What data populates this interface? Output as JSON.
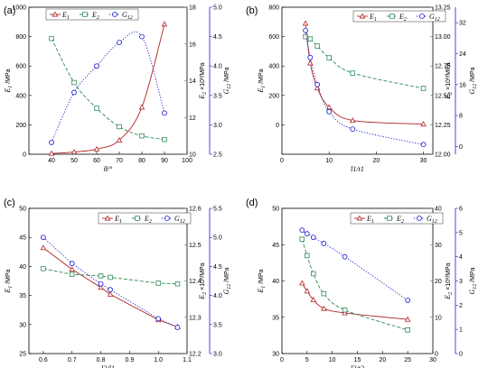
{
  "colors": {
    "E1": "#b22222",
    "E2": "#2e8b57",
    "G12": "#1a1ad0",
    "black": "#000000"
  },
  "chart_data": [
    {
      "type": "line",
      "panel_label": "(a)",
      "xlabel": "θ/°",
      "ylabel_left": "E1 /MPa",
      "ylabel_right1": "E2 ×10³/MPa",
      "ylabel_right2": "G12 /MPa",
      "xlim": [
        30,
        100
      ],
      "x_ticks": [
        40,
        50,
        60,
        70,
        80,
        90,
        100
      ],
      "ylim_left": [
        0,
        1000
      ],
      "y_left_ticks": [
        0,
        200,
        400,
        600,
        800,
        1000
      ],
      "ylim_right1": [
        10,
        18
      ],
      "y_right1_ticks": [
        10,
        12,
        14,
        16,
        18
      ],
      "ylim_right2": [
        2.5,
        5.0
      ],
      "y_right2_ticks": [
        2.5,
        3.0,
        3.5,
        4.0,
        4.5,
        5.0
      ],
      "legend": [
        "E1",
        "E2",
        "G12"
      ],
      "legend_position": "top-left",
      "series": [
        {
          "name": "E1",
          "axis": "left",
          "marker": "triangle",
          "style": "solid",
          "smooth": true,
          "x": [
            40,
            50,
            60,
            70,
            80,
            90
          ],
          "y": [
            5,
            15,
            35,
            95,
            320,
            885
          ]
        },
        {
          "name": "E2",
          "axis": "right1",
          "marker": "square",
          "style": "dashed",
          "smooth": true,
          "x": [
            40,
            50,
            60,
            70,
            80,
            90
          ],
          "y": [
            16.3,
            13.9,
            12.5,
            11.5,
            11.0,
            10.8
          ]
        },
        {
          "name": "G12",
          "axis": "right2",
          "marker": "circle",
          "style": "dotted",
          "smooth": true,
          "x": [
            40,
            50,
            60,
            70,
            80,
            90
          ],
          "y": [
            2.7,
            3.55,
            4.0,
            4.4,
            4.5,
            3.2
          ]
        }
      ]
    },
    {
      "type": "line",
      "panel_label": "(b)",
      "xlabel": "l1/t1",
      "ylabel_left": "E1 /MPa",
      "ylabel_right1": "E2 ×10³/MPa",
      "ylabel_right2": "G12 /MPa",
      "xlim": [
        0,
        32
      ],
      "x_ticks": [
        0,
        10,
        20,
        30
      ],
      "ylim_left": [
        -200,
        800
      ],
      "y_left_ticks": [
        0,
        200,
        400,
        600,
        800
      ],
      "ylim_right1": [
        12.0,
        13.25
      ],
      "y_right1_ticks": [
        12.0,
        12.25,
        12.5,
        12.75,
        13.0,
        13.25
      ],
      "ylim_right2": [
        -2,
        36
      ],
      "y_right2_ticks": [
        0,
        8,
        16,
        24,
        32
      ],
      "legend": [
        "E1",
        "E2",
        "G12"
      ],
      "legend_position": "top-right",
      "series": [
        {
          "name": "E1",
          "axis": "left",
          "marker": "triangle",
          "style": "solid",
          "smooth": true,
          "x": [
            5,
            6,
            7.5,
            10,
            15,
            30
          ],
          "y": [
            690,
            420,
            250,
            120,
            30,
            5
          ]
        },
        {
          "name": "E2",
          "axis": "right1",
          "marker": "square",
          "style": "dashed",
          "smooth": true,
          "x": [
            5,
            6,
            7.5,
            10,
            15,
            30
          ],
          "y": [
            13.0,
            12.98,
            12.92,
            12.82,
            12.69,
            12.56
          ]
        },
        {
          "name": "G12",
          "axis": "right2",
          "marker": "circle",
          "style": "dotted",
          "smooth": true,
          "x": [
            5,
            6,
            7.5,
            10,
            15,
            30
          ],
          "y": [
            30,
            23,
            16,
            9,
            4.5,
            0.5
          ]
        }
      ]
    },
    {
      "type": "line",
      "panel_label": "(c)",
      "xlabel": "l2/l1",
      "ylabel_left": "E1 /MPa",
      "ylabel_right1": "E2 ×10³/MPa",
      "ylabel_right2": "G12 /MPa",
      "xlim": [
        0.55,
        1.1
      ],
      "x_ticks": [
        0.6,
        0.7,
        0.8,
        0.9,
        1.0,
        1.1
      ],
      "ylim_left": [
        25,
        50
      ],
      "y_left_ticks": [
        25,
        30,
        35,
        40,
        45,
        50
      ],
      "ylim_right1": [
        12.2,
        12.6
      ],
      "y_right1_ticks": [
        12.2,
        12.3,
        12.4,
        12.5,
        12.6
      ],
      "ylim_right2": [
        3.0,
        5.5
      ],
      "y_right2_ticks": [
        3.0,
        3.5,
        4.0,
        4.5,
        5.0,
        5.5
      ],
      "legend": [
        "E1",
        "E2",
        "G12"
      ],
      "legend_position": "top-right",
      "series": [
        {
          "name": "E1",
          "axis": "left",
          "marker": "triangle",
          "style": "solid",
          "smooth": false,
          "x": [
            0.6,
            0.7,
            0.8,
            0.833,
            1.0,
            1.067
          ],
          "y": [
            43.2,
            39.5,
            36.4,
            35.2,
            30.8,
            29.6
          ]
        },
        {
          "name": "E2",
          "axis": "right1",
          "marker": "square",
          "style": "dashed",
          "smooth": false,
          "x": [
            0.6,
            0.7,
            0.8,
            0.833,
            1.0,
            1.067
          ],
          "y": [
            12.434,
            12.418,
            12.414,
            12.41,
            12.394,
            12.392
          ]
        },
        {
          "name": "G12",
          "axis": "right2",
          "marker": "circle",
          "style": "dotted",
          "smooth": false,
          "x": [
            0.6,
            0.7,
            0.8,
            0.833,
            1.0,
            1.067
          ],
          "y": [
            5.0,
            4.55,
            4.2,
            4.1,
            3.6,
            3.45
          ]
        }
      ]
    },
    {
      "type": "line",
      "panel_label": "(d)",
      "xlabel": "l2/t2",
      "ylabel_left": "E1 /MPa",
      "ylabel_right1": "E2 ×10³/MPa",
      "ylabel_right2": "G12 /MPa",
      "xlim": [
        0,
        30
      ],
      "x_ticks": [
        0,
        5,
        10,
        15,
        20,
        25,
        30
      ],
      "ylim_left": [
        30,
        50
      ],
      "y_left_ticks": [
        30,
        35,
        40,
        45,
        50
      ],
      "ylim_right1": [
        0,
        40
      ],
      "y_right1_ticks": [
        0,
        10,
        20,
        30,
        40
      ],
      "ylim_right2": [
        0,
        6
      ],
      "y_right2_ticks": [
        0,
        1,
        2,
        3,
        4,
        5,
        6
      ],
      "legend": [
        "E1",
        "E2",
        "G12"
      ],
      "legend_position": "top-right",
      "series": [
        {
          "name": "E1",
          "axis": "left",
          "marker": "triangle",
          "style": "solid",
          "smooth": true,
          "x": [
            4,
            5,
            6.25,
            8.33,
            12.5,
            25
          ],
          "y": [
            39.7,
            38.6,
            37.4,
            36.2,
            35.6,
            34.7
          ]
        },
        {
          "name": "E2",
          "axis": "right1",
          "marker": "square",
          "style": "dashed",
          "smooth": true,
          "x": [
            4,
            5,
            6.25,
            8.33,
            12.5,
            25
          ],
          "y": [
            31.5,
            27,
            22,
            16.5,
            12,
            6.5
          ]
        },
        {
          "name": "G12",
          "axis": "right2",
          "marker": "circle",
          "style": "dotted",
          "smooth": true,
          "x": [
            4,
            5,
            6.25,
            8.33,
            12.5,
            25
          ],
          "y": [
            5.1,
            4.95,
            4.8,
            4.55,
            4.0,
            2.2
          ]
        }
      ]
    }
  ]
}
